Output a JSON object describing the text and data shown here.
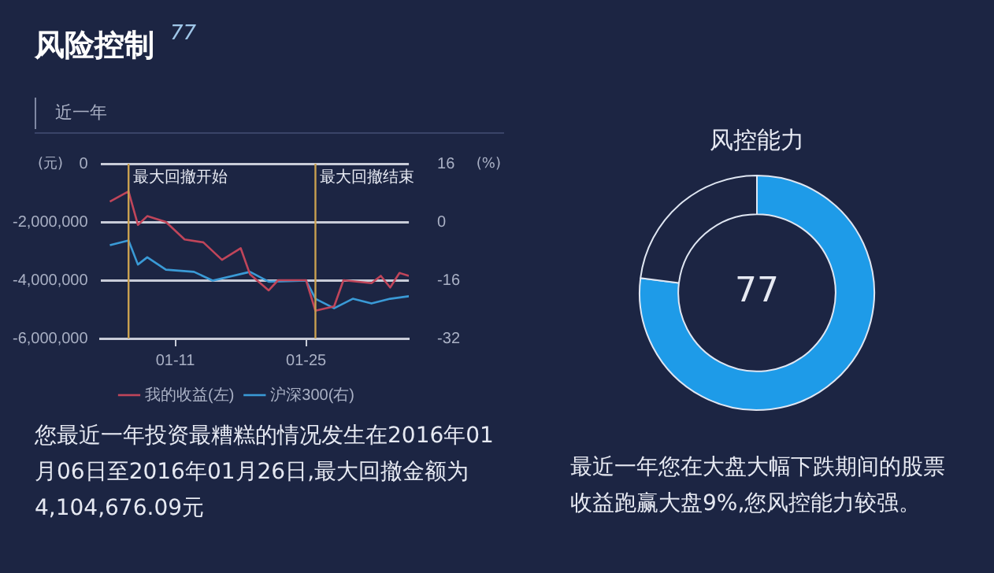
{
  "chart_data": [
    {
      "type": "line",
      "title": "风险控制",
      "subtitle": "近一年",
      "ylabel": "(元)",
      "y2label": "(%)",
      "annotations": [
        "77",
        "您最近一年投资最糟糕的情况发生在2016年01月06日至2016年01月26日,最大回撤金额为4,104,676.09元"
      ],
      "xlim": [
        "2016-01-03",
        "2016-02-05"
      ],
      "xticks": [
        {
          "value": "2016-01-11",
          "label": "01-11"
        },
        {
          "value": "2016-01-25",
          "label": "01-25"
        }
      ],
      "ylim": [
        -6000000,
        0
      ],
      "yticks": [
        {
          "value": 0,
          "label": "0"
        },
        {
          "value": -2000000,
          "label": "-2,000,000"
        },
        {
          "value": -4000000,
          "label": "-4,000,000"
        },
        {
          "value": -6000000,
          "label": "-6,000,000"
        }
      ],
      "y2lim": [
        -32,
        16
      ],
      "y2ticks": [
        16,
        0,
        -16,
        -32
      ],
      "grid": "y",
      "legend": "bottom",
      "ref_lines": [
        {
          "axis": "x",
          "value": "2016-01-06",
          "label": "最大回撤开始",
          "color": "#c9a050"
        },
        {
          "axis": "x",
          "value": "2016-01-26",
          "label": "最大回撤结束",
          "color": "#c9a050"
        }
      ],
      "series": [
        {
          "name": "我的收益(左)",
          "color": "#c0455a",
          "x": [
            "2016-01-04",
            "2016-01-06",
            "2016-01-07",
            "2016-01-08",
            "2016-01-10",
            "2016-01-12",
            "2016-01-14",
            "2016-01-16",
            "2016-01-18",
            "2016-01-19",
            "2016-01-21",
            "2016-01-22",
            "2016-01-25",
            "2016-01-26",
            "2016-01-28",
            "2016-01-29",
            "2016-02-01",
            "2016-02-02",
            "2016-02-03",
            "2016-02-04",
            "2016-02-05"
          ],
          "values": [
            -1300000,
            -950000,
            -2100000,
            -1800000,
            -2000000,
            -2600000,
            -2700000,
            -3300000,
            -2900000,
            -3800000,
            -4350000,
            -4000000,
            -4000000,
            -5050000,
            -4900000,
            -4000000,
            -4100000,
            -3850000,
            -4250000,
            -3750000,
            -3850000
          ]
        },
        {
          "name": "沪深300(右)",
          "color": "#3a9ad6",
          "axis": "y2",
          "x": [
            "2016-01-04",
            "2016-01-06",
            "2016-01-07",
            "2016-01-08",
            "2016-01-10",
            "2016-01-13",
            "2016-01-15",
            "2016-01-19",
            "2016-01-21",
            "2016-01-25",
            "2016-01-26",
            "2016-01-28",
            "2016-01-30",
            "2016-02-01",
            "2016-02-03",
            "2016-02-05"
          ],
          "values": [
            -6.4,
            -5.1,
            -11.7,
            -9.7,
            -13.1,
            -13.7,
            -16.1,
            -13.7,
            -16.4,
            -16.1,
            -21.1,
            -23.7,
            -21.1,
            -22.4,
            -21.1,
            -20.4
          ]
        }
      ]
    },
    {
      "type": "donut",
      "title": "风控能力",
      "categories": [
        null,
        null
      ],
      "values": [
        77,
        23
      ],
      "colors": [
        "#1e9be8",
        "#1c2543"
      ],
      "annotations": [
        "77",
        "最近一年您在大盘大幅下跌期间的股票收益跑赢大盘9%,您风控能力较强。"
      ]
    }
  ]
}
